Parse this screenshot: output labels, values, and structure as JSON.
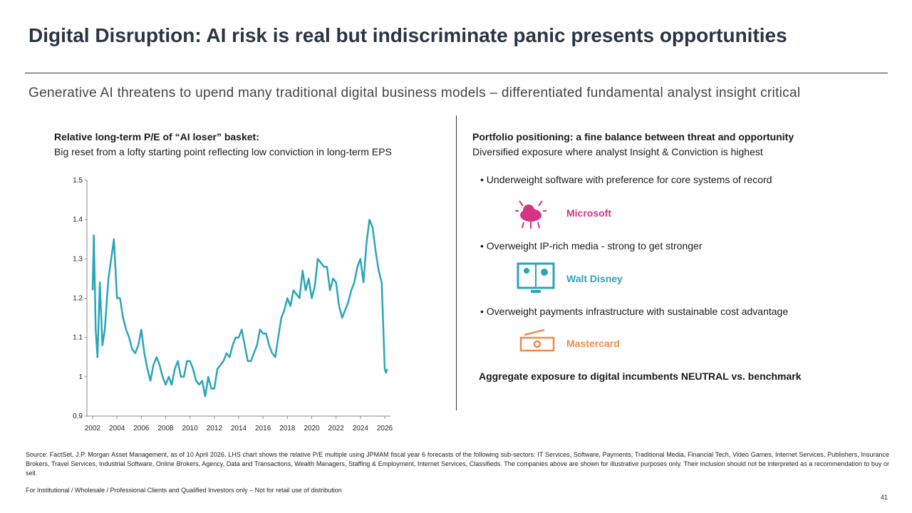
{
  "header": {
    "title": "Digital Disruption: AI risk is real but indiscriminate panic presents opportunities",
    "subtitle": "Generative AI threatens to upend many traditional digital business models – differentiated fundamental analyst insight critical"
  },
  "left": {
    "heading": "Relative long-term P/E of “AI loser” basket:",
    "text": "Big reset from a lofty starting point reflecting low conviction in long-term EPS"
  },
  "right": {
    "heading": "Portfolio positioning: a fine balance between threat and opportunity",
    "text": "Diversified exposure where analyst Insight & Conviction is highest",
    "items": [
      {
        "text": "Underweight software with preference for core systems of record",
        "company": "Microsoft"
      },
      {
        "text": "Overweight IP-rich media - strong to get stronger",
        "company": "Walt Disney"
      },
      {
        "text": "Overweight payments infrastructure with sustainable cost advantage",
        "company": "Mastercard"
      }
    ],
    "conclusion": "Aggregate exposure to digital incumbents NEUTRAL vs. benchmark"
  },
  "footer": {
    "source": "Source: FactSet, J.P. Morgan Asset Management, as of 10 April 2026. LHS chart shows the relative P/E multiple using JPMAM fiscal year 6 forecasts of the following sub-sectors: IT Services, Software, Payments, Traditional Media, Financial Tech, Video Games, Internet Services, Publishers, Insurance Brokers, Travel Services, Industrial Software, Online Brokers, Agency, Data and Transactions, Wealth Managers, Staffing & Employment, Internet Services, Classifieds. The companies above are shown for illustrative purposes only. Their inclusion should not be interpreted as a recommendation to buy or sell.",
    "disclaimer": "For Institutional / Wholesale / Professional Clients and Qualified Investors only – Not for retail use of distribution",
    "page": "41"
  },
  "chart_data": {
    "type": "line",
    "color": "#2aa5b8",
    "x": [
      2002.0,
      2002.1,
      2002.25,
      2002.4,
      2002.6,
      2002.8,
      2003.0,
      2003.3,
      2003.75,
      2004.0,
      2004.25,
      2004.5,
      2004.75,
      2005.0,
      2005.25,
      2005.5,
      2005.75,
      2006.0,
      2006.25,
      2006.5,
      2006.75,
      2007.0,
      2007.25,
      2007.5,
      2007.75,
      2008.0,
      2008.25,
      2008.5,
      2008.75,
      2009.0,
      2009.25,
      2009.5,
      2009.75,
      2010.0,
      2010.25,
      2010.5,
      2010.75,
      2011.0,
      2011.25,
      2011.5,
      2011.75,
      2012.0,
      2012.25,
      2012.5,
      2012.75,
      2013.0,
      2013.25,
      2013.5,
      2013.75,
      2014.0,
      2014.25,
      2014.5,
      2014.75,
      2015.0,
      2015.25,
      2015.5,
      2015.75,
      2016.0,
      2016.25,
      2016.5,
      2016.75,
      2017.0,
      2017.25,
      2017.5,
      2017.75,
      2018.0,
      2018.25,
      2018.5,
      2018.75,
      2019.0,
      2019.25,
      2019.5,
      2019.75,
      2020.0,
      2020.25,
      2020.5,
      2020.75,
      2021.0,
      2021.25,
      2021.5,
      2021.75,
      2022.0,
      2022.25,
      2022.5,
      2022.75,
      2023.0,
      2023.25,
      2023.5,
      2023.75,
      2024.0,
      2024.25,
      2024.5,
      2024.75,
      2025.0,
      2025.25,
      2025.5,
      2025.75,
      2026.0,
      2026.1,
      2026.2
    ],
    "values": [
      1.22,
      1.36,
      1.12,
      1.05,
      1.24,
      1.08,
      1.12,
      1.25,
      1.35,
      1.2,
      1.2,
      1.15,
      1.12,
      1.1,
      1.07,
      1.06,
      1.08,
      1.12,
      1.06,
      1.02,
      0.99,
      1.03,
      1.05,
      1.03,
      1.0,
      0.98,
      1.0,
      0.98,
      1.02,
      1.04,
      1.0,
      1.0,
      1.04,
      1.04,
      1.02,
      0.99,
      0.98,
      0.99,
      0.95,
      1.0,
      0.97,
      0.97,
      1.02,
      1.03,
      1.04,
      1.06,
      1.05,
      1.08,
      1.1,
      1.1,
      1.12,
      1.08,
      1.04,
      1.04,
      1.06,
      1.08,
      1.12,
      1.11,
      1.11,
      1.08,
      1.06,
      1.05,
      1.1,
      1.15,
      1.17,
      1.2,
      1.18,
      1.22,
      1.21,
      1.2,
      1.27,
      1.22,
      1.25,
      1.2,
      1.23,
      1.3,
      1.29,
      1.28,
      1.28,
      1.22,
      1.25,
      1.24,
      1.18,
      1.15,
      1.17,
      1.19,
      1.22,
      1.24,
      1.28,
      1.3,
      1.24,
      1.34,
      1.4,
      1.38,
      1.32,
      1.27,
      1.24,
      1.02,
      1.01,
      1.02
    ],
    "xlim": [
      2002,
      2026
    ],
    "xticks": [
      2002,
      2004,
      2006,
      2008,
      2010,
      2012,
      2014,
      2016,
      2018,
      2020,
      2022,
      2024,
      2026
    ],
    "ylim": [
      0.9,
      1.5
    ],
    "yticks": [
      0.9,
      1,
      1.1,
      1.2,
      1.3,
      1.4,
      1.5
    ]
  }
}
